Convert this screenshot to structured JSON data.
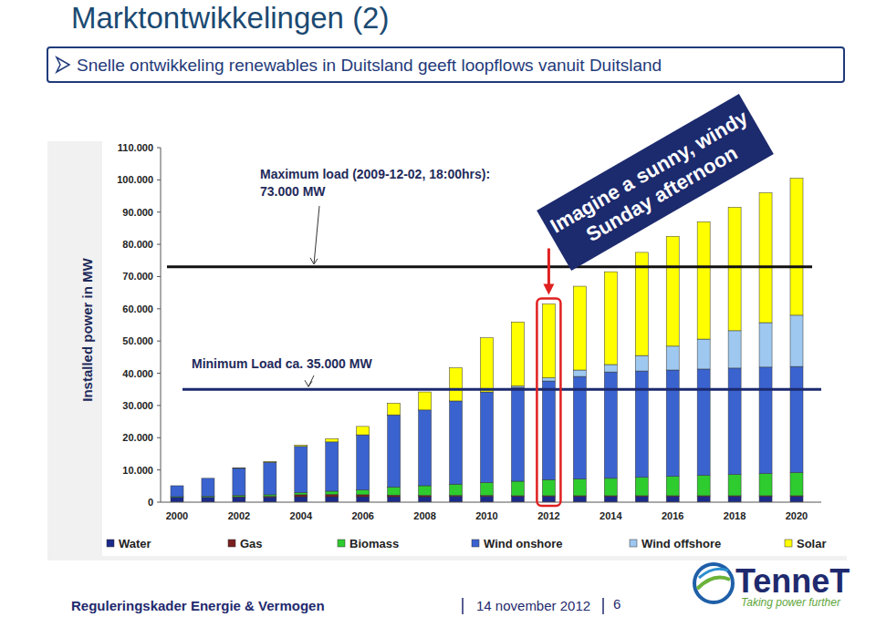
{
  "page": {
    "title": "Marktontwikkelingen (2)",
    "bullet": "Snelle ontwikkeling renewables in Duitsland geeft loopflows vanuit Duitsland",
    "footer": {
      "left": "Reguleringskader Energie & Vermogen",
      "date": "14 november 2012",
      "page_number": "6"
    },
    "logo": {
      "name": "TenneT",
      "tagline": "Taking power further"
    }
  },
  "chart_data": {
    "type": "bar",
    "stacked": true,
    "grid": false,
    "y_label": "Installed power in MW",
    "categories": [
      "2000",
      null,
      "2002",
      null,
      "2004",
      null,
      "2006",
      null,
      "2008",
      null,
      "2010",
      null,
      "2012",
      null,
      "2014",
      null,
      "2016",
      null,
      "2018",
      null,
      "2020"
    ],
    "series": [
      {
        "name": "Water",
        "color": "#1c2a8a",
        "values": [
          1500,
          1500,
          1600,
          1600,
          1700,
          1700,
          1700,
          1700,
          1700,
          1800,
          1800,
          1800,
          1800,
          1800,
          1800,
          1800,
          1800,
          1800,
          1800,
          1800,
          1800
        ]
      },
      {
        "name": "Gas",
        "color": "#7a1f1f",
        "values": [
          0,
          0,
          100,
          200,
          600,
          700,
          600,
          500,
          400,
          300,
          300,
          200,
          200,
          200,
          200,
          200,
          200,
          200,
          200,
          200,
          200
        ]
      },
      {
        "name": "Biomass",
        "color": "#2ecc2e",
        "values": [
          200,
          300,
          400,
          500,
          700,
          1000,
          1500,
          2500,
          3000,
          3500,
          4000,
          4500,
          5000,
          5200,
          5400,
          5700,
          6000,
          6300,
          6600,
          6900,
          7200
        ]
      },
      {
        "name": "Wind onshore",
        "color": "#3a63d0",
        "values": [
          3400,
          5600,
          8400,
          10100,
          14300,
          15300,
          17100,
          22400,
          23500,
          25800,
          28100,
          29100,
          30600,
          31800,
          33000,
          33000,
          33000,
          33000,
          33000,
          33000,
          32900
        ]
      },
      {
        "name": "Wind offshore",
        "color": "#9ec8f0",
        "values": [
          0,
          0,
          0,
          0,
          0,
          0,
          0,
          0,
          0,
          0,
          0,
          500,
          1000,
          2000,
          2300,
          4800,
          7400,
          9300,
          11600,
          13800,
          15900
        ]
      },
      {
        "name": "Solar",
        "color": "#ffff00",
        "values": [
          0,
          0,
          100,
          200,
          400,
          1000,
          2600,
          3600,
          5600,
          10300,
          16800,
          19800,
          22900,
          26000,
          28800,
          32000,
          34100,
          36400,
          38300,
          40300,
          42500
        ]
      }
    ],
    "ylim": [
      0,
      110000
    ],
    "yticks": [
      0,
      {
        "value": 10000,
        "label": "10.000"
      },
      {
        "value": 20000,
        "label": "20.000"
      },
      {
        "value": 30000,
        "label": "30.000"
      },
      {
        "value": 40000,
        "label": "40.000"
      },
      {
        "value": 50000,
        "label": "50.000"
      },
      {
        "value": 60000,
        "label": "60.000"
      },
      {
        "value": 70000,
        "label": "70.000"
      },
      {
        "value": 80000,
        "label": "80.000"
      },
      {
        "value": 90000,
        "label": "90.000"
      },
      {
        "value": 100000,
        "label": "100.000"
      },
      {
        "value": 110000,
        "label": "110.000"
      }
    ],
    "reference_lines": [
      {
        "value": 73000,
        "color": "#111111",
        "label": [
          "Maximum load (2009-12-02, 18:00hrs):",
          "73.000 MW"
        ]
      },
      {
        "value": 35000,
        "color": "#1c2a6e",
        "label": [
          "Minimum Load ca. 35.000 MW"
        ]
      }
    ],
    "highlight": {
      "category": "2012",
      "color": "#e02020",
      "text": [
        "Imagine a sunny, windy",
        "Sunday afternoon"
      ]
    }
  }
}
